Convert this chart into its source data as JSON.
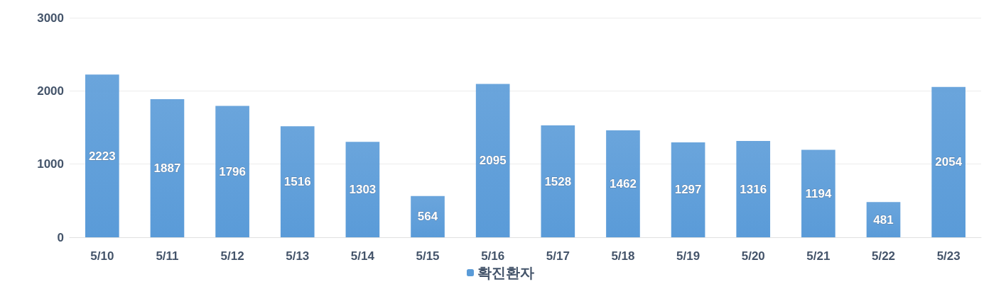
{
  "chart_data": {
    "type": "bar",
    "categories": [
      "5/10",
      "5/11",
      "5/12",
      "5/13",
      "5/14",
      "5/15",
      "5/16",
      "5/17",
      "5/18",
      "5/19",
      "5/20",
      "5/21",
      "5/22",
      "5/23"
    ],
    "series": [
      {
        "name": "확진환자",
        "color": "#5a9bd8",
        "values": [
          2223,
          1887,
          1796,
          1516,
          1303,
          564,
          2095,
          1528,
          1462,
          1297,
          1316,
          1194,
          481,
          2054
        ]
      }
    ],
    "ylim": [
      0,
      3000
    ],
    "yticks": [
      0,
      1000,
      2000,
      3000
    ],
    "grid": "y",
    "legend": "bottom",
    "data_labels": true
  }
}
